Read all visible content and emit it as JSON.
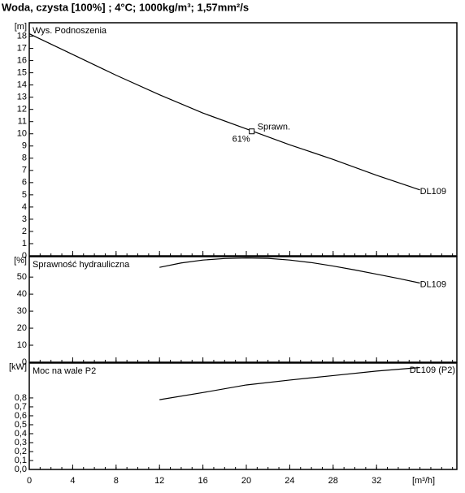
{
  "title": "Woda, czysta [100%] ; 4°C; 1000kg/m³; 1,57mm²/s",
  "chart_data": [
    {
      "type": "line",
      "title": "Wys. Podnoszenia",
      "ylabel": "[m]",
      "x": [
        0,
        4,
        8,
        12,
        16,
        20,
        24,
        28,
        32,
        36
      ],
      "series": [
        {
          "name": "DL109",
          "color": "#000000",
          "values": [
            18.2,
            16.5,
            14.8,
            13.2,
            11.7,
            10.4,
            9.1,
            7.9,
            6.6,
            5.4
          ]
        }
      ],
      "ylim": [
        0,
        19.1
      ],
      "yticks": [
        0,
        1,
        2,
        3,
        4,
        5,
        6,
        7,
        8,
        9,
        10,
        11,
        12,
        13,
        14,
        15,
        16,
        17,
        18
      ],
      "operating_point": {
        "x": 20.5,
        "y": 10.2,
        "label": "Sprawn.",
        "value": 61,
        "value_label": "61%"
      }
    },
    {
      "type": "line",
      "title": "Sprawność hydrauliczna",
      "ylabel": "[%]",
      "x": [
        12,
        14,
        16,
        18,
        20,
        22,
        24,
        26,
        28,
        30,
        32,
        34,
        36
      ],
      "series": [
        {
          "name": "DL109",
          "color": "#000000",
          "values": [
            55.7,
            58.3,
            60,
            60.9,
            61.2,
            61,
            60,
            58.5,
            56.5,
            54.2,
            51.7,
            49.2,
            46.5
          ]
        }
      ],
      "ylim": [
        0,
        62
      ],
      "yticks": [
        0,
        10,
        20,
        30,
        40,
        50
      ]
    },
    {
      "type": "line",
      "title": "Moc na wale P2",
      "ylabel": "[kW]",
      "xlabel": "[m³/h]",
      "x": [
        12,
        16,
        20,
        24,
        28,
        32,
        36
      ],
      "series": [
        {
          "name": "DL109 (P2)",
          "color": "#000000",
          "values": [
            0.78,
            0.86,
            0.945,
            1.0,
            1.05,
            1.1,
            1.14
          ]
        }
      ],
      "ylim": [
        0,
        1.19
      ],
      "yticks": [
        {
          "value": 0,
          "label": "0,0"
        },
        {
          "value": 0.1,
          "label": "0,1"
        },
        {
          "value": 0.2,
          "label": "0,2"
        },
        {
          "value": 0.3,
          "label": "0,3"
        },
        {
          "value": 0.4,
          "label": "0,4"
        },
        {
          "value": 0.5,
          "label": "0,5"
        },
        {
          "value": 0.6,
          "label": "0,6"
        },
        {
          "value": 0.7,
          "label": "0,7"
        },
        {
          "value": 0.8,
          "label": "0,8"
        }
      ],
      "xlim": [
        0,
        39.4
      ],
      "xticks": [
        0,
        4,
        8,
        12,
        16,
        20,
        24,
        28,
        32
      ]
    }
  ]
}
